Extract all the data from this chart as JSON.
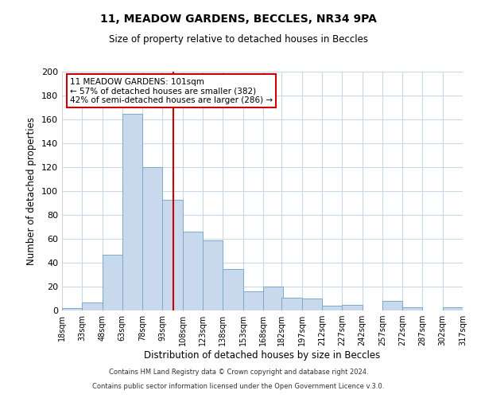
{
  "title": "11, MEADOW GARDENS, BECCLES, NR34 9PA",
  "subtitle": "Size of property relative to detached houses in Beccles",
  "xlabel": "Distribution of detached houses by size in Beccles",
  "ylabel": "Number of detached properties",
  "bar_edges": [
    18,
    33,
    48,
    63,
    78,
    93,
    108,
    123,
    138,
    153,
    168,
    182,
    197,
    212,
    227,
    242,
    257,
    272,
    287,
    302,
    317
  ],
  "bar_heights": [
    2,
    7,
    47,
    165,
    120,
    93,
    66,
    59,
    35,
    16,
    20,
    11,
    10,
    4,
    5,
    0,
    8,
    3,
    0,
    3
  ],
  "bar_color": "#c8d9ed",
  "bar_edge_color": "#7aaac8",
  "vline_x": 101,
  "vline_color": "#cc0000",
  "ylim": [
    0,
    200
  ],
  "yticks": [
    0,
    20,
    40,
    60,
    80,
    100,
    120,
    140,
    160,
    180,
    200
  ],
  "annotation_title": "11 MEADOW GARDENS: 101sqm",
  "annotation_line1": "← 57% of detached houses are smaller (382)",
  "annotation_line2": "42% of semi-detached houses are larger (286) →",
  "footer_line1": "Contains HM Land Registry data © Crown copyright and database right 2024.",
  "footer_line2": "Contains public sector information licensed under the Open Government Licence v.3.0.",
  "background_color": "#ffffff",
  "grid_color": "#c8d8e8",
  "tick_labels": [
    "18sqm",
    "33sqm",
    "48sqm",
    "63sqm",
    "78sqm",
    "93sqm",
    "108sqm",
    "123sqm",
    "138sqm",
    "153sqm",
    "168sqm",
    "182sqm",
    "197sqm",
    "212sqm",
    "227sqm",
    "242sqm",
    "257sqm",
    "272sqm",
    "287sqm",
    "302sqm",
    "317sqm"
  ]
}
